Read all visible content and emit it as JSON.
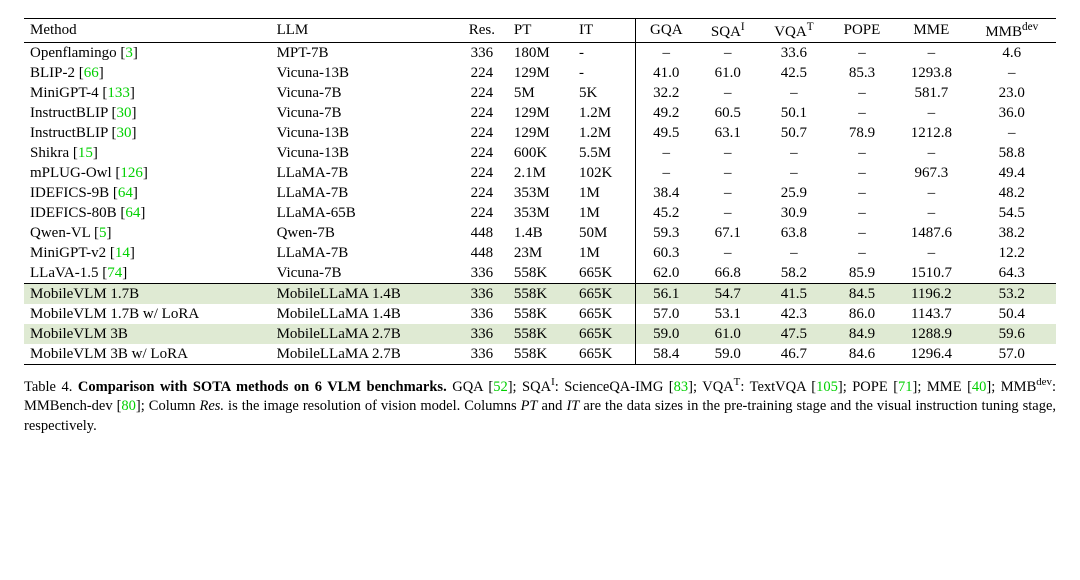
{
  "colors": {
    "cite": "#00d000",
    "highlight": "#dfead3",
    "border": "#000000",
    "background": "#ffffff",
    "text": "#000000"
  },
  "typography": {
    "font_family": "Times New Roman",
    "body_fontsize_pt": 11,
    "caption_fontsize_pt": 10.5
  },
  "table": {
    "columns": [
      {
        "key": "method",
        "label": "Method",
        "align": "left",
        "group": "left"
      },
      {
        "key": "llm",
        "label": "LLM",
        "align": "left",
        "group": "left"
      },
      {
        "key": "res",
        "label": "Res.",
        "align": "center",
        "group": "left"
      },
      {
        "key": "pt",
        "label": "PT",
        "align": "left",
        "group": "left"
      },
      {
        "key": "it",
        "label": "IT",
        "align": "left",
        "group": "left"
      },
      {
        "key": "gqa",
        "label": "GQA",
        "align": "center",
        "group": "right",
        "vsep": true
      },
      {
        "key": "sqa",
        "label": "SQA",
        "sup": "I",
        "align": "center",
        "group": "right"
      },
      {
        "key": "vqat",
        "label": "VQA",
        "sup": "T",
        "align": "center",
        "group": "right"
      },
      {
        "key": "pope",
        "label": "POPE",
        "align": "center",
        "group": "right"
      },
      {
        "key": "mme",
        "label": "MME",
        "align": "center",
        "group": "right"
      },
      {
        "key": "mmb",
        "label": "MMB",
        "sup": "dev",
        "align": "center",
        "group": "right"
      }
    ],
    "upper": [
      {
        "method": "Openflamingo",
        "cite": "3",
        "llm": "MPT-7B",
        "res": "336",
        "pt": "180M",
        "it": "-",
        "gqa": "–",
        "sqa": "–",
        "vqat": "33.6",
        "pope": "–",
        "mme": "–",
        "mmb": "4.6"
      },
      {
        "method": "BLIP-2",
        "cite": "66",
        "llm": "Vicuna-13B",
        "res": "224",
        "pt": "129M",
        "it": "-",
        "gqa": "41.0",
        "sqa": "61.0",
        "vqat": "42.5",
        "pope": "85.3",
        "mme": "1293.8",
        "mmb": "–"
      },
      {
        "method": "MiniGPT-4",
        "cite": "133",
        "llm": "Vicuna-7B",
        "res": "224",
        "pt": "5M",
        "it": "5K",
        "gqa": "32.2",
        "sqa": "–",
        "vqat": "–",
        "pope": "–",
        "mme": "581.7",
        "mmb": "23.0"
      },
      {
        "method": "InstructBLIP",
        "cite": "30",
        "llm": "Vicuna-7B",
        "res": "224",
        "pt": "129M",
        "it": "1.2M",
        "gqa": "49.2",
        "sqa": "60.5",
        "vqat": "50.1",
        "pope": "–",
        "mme": "–",
        "mmb": "36.0"
      },
      {
        "method": "InstructBLIP",
        "cite": "30",
        "llm": "Vicuna-13B",
        "res": "224",
        "pt": "129M",
        "it": "1.2M",
        "gqa": "49.5",
        "sqa": "63.1",
        "vqat": "50.7",
        "pope": "78.9",
        "mme": "1212.8",
        "mmb": "–"
      },
      {
        "method": "Shikra",
        "cite": "15",
        "llm": "Vicuna-13B",
        "res": "224",
        "pt": "600K",
        "it": "5.5M",
        "gqa": "–",
        "sqa": "–",
        "vqat": "–",
        "pope": "–",
        "mme": "–",
        "mmb": "58.8"
      },
      {
        "method": "mPLUG-Owl",
        "cite": "126",
        "llm": "LLaMA-7B",
        "res": "224",
        "pt": "2.1M",
        "it": "102K",
        "gqa": "–",
        "sqa": "–",
        "vqat": "–",
        "pope": "–",
        "mme": "967.3",
        "mmb": "49.4"
      },
      {
        "method": "IDEFICS-9B",
        "cite": "64",
        "llm": "LLaMA-7B",
        "res": "224",
        "pt": "353M",
        "it": "1M",
        "gqa": "38.4",
        "sqa": "–",
        "vqat": "25.9",
        "pope": "–",
        "mme": "–",
        "mmb": "48.2"
      },
      {
        "method": "IDEFICS-80B",
        "cite": "64",
        "llm": "LLaMA-65B",
        "res": "224",
        "pt": "353M",
        "it": "1M",
        "gqa": "45.2",
        "sqa": "–",
        "vqat": "30.9",
        "pope": "–",
        "mme": "–",
        "mmb": "54.5"
      },
      {
        "method": "Qwen-VL",
        "cite": "5",
        "llm": "Qwen-7B",
        "res": "448",
        "pt": "1.4B",
        "it": "50M",
        "gqa": "59.3",
        "sqa": "67.1",
        "vqat": "63.8",
        "pope": "–",
        "mme": "1487.6",
        "mmb": "38.2"
      },
      {
        "method": "MiniGPT-v2",
        "cite": "14",
        "llm": "LLaMA-7B",
        "res": "448",
        "pt": "23M",
        "it": "1M",
        "gqa": "60.3",
        "sqa": "–",
        "vqat": "–",
        "pope": "–",
        "mme": "–",
        "mmb": "12.2"
      },
      {
        "method": "LLaVA-1.5",
        "cite": "74",
        "llm": "Vicuna-7B",
        "res": "336",
        "pt": "558K",
        "it": "665K",
        "gqa": "62.0",
        "sqa": "66.8",
        "vqat": "58.2",
        "pope": "85.9",
        "mme": "1510.7",
        "mmb": "64.3"
      }
    ],
    "lower": [
      {
        "method": "MobileVLM 1.7B",
        "llm": "MobileLLaMA 1.4B",
        "res": "336",
        "pt": "558K",
        "it": "665K",
        "gqa": "56.1",
        "sqa": "54.7",
        "vqat": "41.5",
        "pope": "84.5",
        "mme": "1196.2",
        "mmb": "53.2",
        "highlight": true
      },
      {
        "method": "MobileVLM 1.7B w/ LoRA",
        "llm": "MobileLLaMA 1.4B",
        "res": "336",
        "pt": "558K",
        "it": "665K",
        "gqa": "57.0",
        "sqa": "53.1",
        "vqat": "42.3",
        "pope": "86.0",
        "mme": "1143.7",
        "mmb": "50.4"
      },
      {
        "method": "MobileVLM 3B",
        "llm": "MobileLLaMA 2.7B",
        "res": "336",
        "pt": "558K",
        "it": "665K",
        "gqa": "59.0",
        "sqa": "61.0",
        "vqat": "47.5",
        "pope": "84.9",
        "mme": "1288.9",
        "mmb": "59.6",
        "highlight": true
      },
      {
        "method": "MobileVLM 3B w/ LoRA",
        "llm": "MobileLLaMA 2.7B",
        "res": "336",
        "pt": "558K",
        "it": "665K",
        "gqa": "58.4",
        "sqa": "59.0",
        "vqat": "46.7",
        "pope": "84.6",
        "mme": "1296.4",
        "mmb": "57.0"
      }
    ]
  },
  "caption": {
    "label": "Table 4.",
    "title": "Comparison with SOTA methods on 6 VLM benchmarks.",
    "items": [
      {
        "text": "GQA",
        "cite": "52"
      },
      {
        "text_html": "SQA<sup>I</sup>: ScienceQA-IMG",
        "cite": "83"
      },
      {
        "text_html": "VQA<sup>T</sup>: TextVQA",
        "cite": "105"
      },
      {
        "text": "POPE",
        "cite": "71"
      },
      {
        "text": "MME",
        "cite": "40"
      },
      {
        "text_html": "MMB<sup>dev</sup>: MMBench-dev",
        "cite": "80"
      }
    ],
    "tail": "Column <i>Res.</i> is the image resolution of vision model. Columns <i>PT</i> and <i>IT</i> are the data sizes in the pre-training stage and the visual instruction tuning stage, respectively."
  }
}
